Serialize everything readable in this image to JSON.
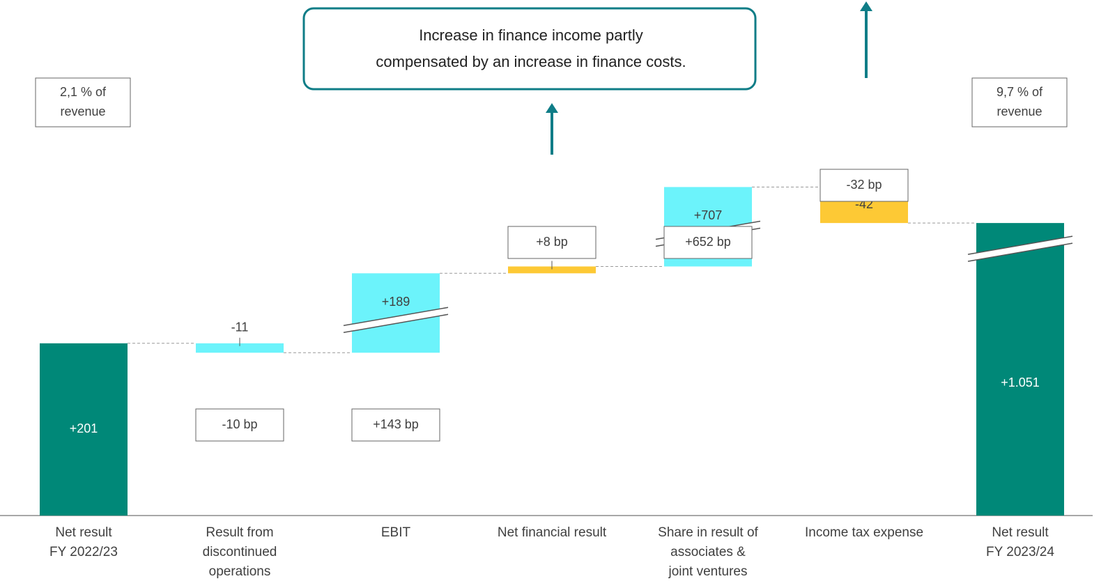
{
  "chart_data": {
    "type": "waterfall",
    "categories": [
      [
        "Net result",
        "FY 2022/23"
      ],
      [
        "Result from",
        "discontinued",
        "operations"
      ],
      [
        "EBIT"
      ],
      [
        "Net financial result"
      ],
      [
        "Share in result of",
        "associates &",
        "joint ventures"
      ],
      [
        "Income tax expense"
      ],
      [
        "Net result",
        "FY 2023/24"
      ]
    ],
    "kinds": [
      "total",
      "delta",
      "delta",
      "delta",
      "delta",
      "delta",
      "total"
    ],
    "values": [
      201,
      -11,
      189,
      8,
      707,
      -42,
      1051
    ],
    "value_labels": [
      "+201",
      "-11",
      "+189",
      "+8",
      "+707",
      "-42",
      "+1.051"
    ],
    "colors": [
      "#008878",
      "#6cf3fb",
      "#6cf3fb",
      "#fdc935",
      "#6cf3fb",
      "#fdc935",
      "#008878"
    ],
    "bp_labels": [
      null,
      "-10 bp",
      "+143 bp",
      "+8 bp",
      "+652 bp",
      "-32 bp",
      null
    ],
    "revenue_notes": [
      [
        "2,1 % of",
        "revenue"
      ],
      null,
      null,
      null,
      null,
      null,
      [
        "9,7 % of",
        "revenue"
      ]
    ],
    "annotation": [
      "Increase in finance income partly",
      "compensated by an increase in finance costs."
    ],
    "axis_break": true
  }
}
